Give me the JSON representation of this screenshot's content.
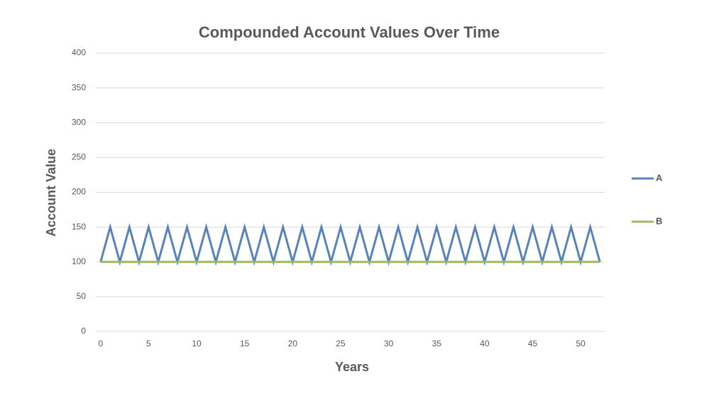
{
  "chart_data": {
    "type": "line",
    "title": "Compounded Account Values Over Time",
    "x_label": "Years",
    "y_label": "Account Value",
    "x": [
      0,
      1,
      2,
      3,
      4,
      5,
      6,
      7,
      8,
      9,
      10,
      11,
      12,
      13,
      14,
      15,
      16,
      17,
      18,
      19,
      20,
      21,
      22,
      23,
      24,
      25,
      26,
      27,
      28,
      29,
      30,
      31,
      32,
      33,
      34,
      35,
      36,
      37,
      38,
      39,
      40,
      41,
      42,
      43,
      44,
      45,
      46,
      47,
      48,
      49,
      50,
      51,
      52
    ],
    "series": [
      {
        "name": "A",
        "color": "#5683bb",
        "values": [
          100,
          150,
          100,
          150,
          100,
          150,
          100,
          150,
          100,
          150,
          100,
          150,
          100,
          150,
          100,
          150,
          100,
          150,
          100,
          150,
          100,
          150,
          100,
          150,
          100,
          150,
          100,
          150,
          100,
          150,
          100,
          150,
          100,
          150,
          100,
          150,
          100,
          150,
          100,
          150,
          100,
          150,
          100,
          150,
          100,
          150,
          100,
          150,
          100,
          150,
          100,
          150,
          100
        ]
      },
      {
        "name": "B",
        "color": "#9bbb59",
        "values": [
          100,
          100,
          100,
          100,
          100,
          100,
          100,
          100,
          100,
          100,
          100,
          100,
          100,
          100,
          100,
          100,
          100,
          100,
          100,
          100,
          100,
          100,
          100,
          100,
          100,
          100,
          100,
          100,
          100,
          100,
          100,
          100,
          100,
          100,
          100,
          100,
          100,
          100,
          100,
          100,
          100,
          100,
          100,
          100,
          100,
          100,
          100,
          100,
          100,
          100,
          100,
          100,
          100
        ]
      }
    ],
    "xlim": [
      -0.5,
      52.5
    ],
    "xticks": [
      0,
      5,
      10,
      15,
      20,
      25,
      30,
      35,
      40,
      45,
      50
    ],
    "ylim": [
      0,
      400
    ],
    "yticks": [
      0,
      50,
      100,
      150,
      200,
      250,
      300,
      350,
      400
    ],
    "grid": true,
    "legend": "right"
  }
}
